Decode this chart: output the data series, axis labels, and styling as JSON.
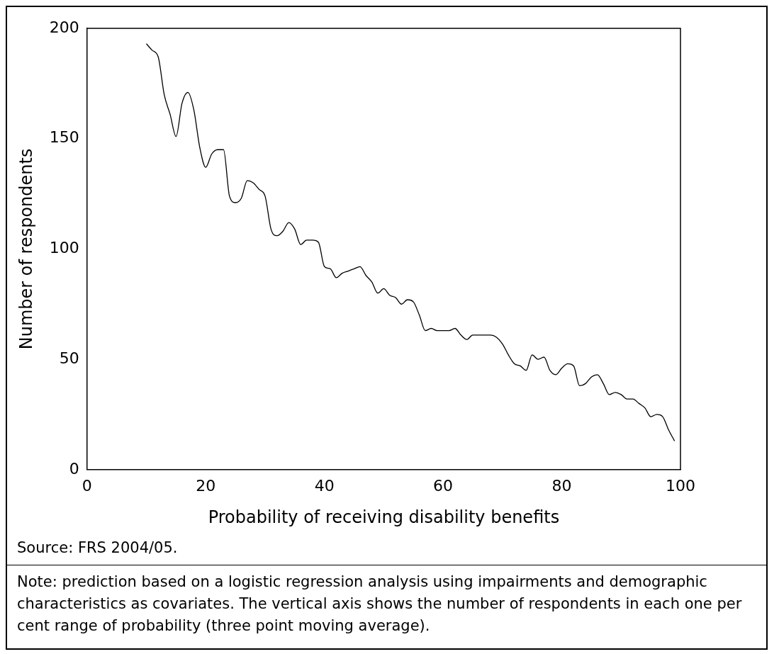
{
  "chart_data": {
    "type": "line",
    "xlabel": "Probability of receiving disability benefits",
    "ylabel": "Number of respondents",
    "x": [
      10,
      11,
      12,
      13,
      14,
      15,
      16,
      17,
      18,
      19,
      20,
      21,
      22,
      23,
      24,
      25,
      26,
      27,
      28,
      29,
      30,
      31,
      32,
      33,
      34,
      35,
      36,
      37,
      38,
      39,
      40,
      41,
      42,
      43,
      44,
      45,
      46,
      47,
      48,
      49,
      50,
      51,
      52,
      53,
      54,
      55,
      56,
      57,
      58,
      59,
      60,
      61,
      62,
      63,
      64,
      65,
      66,
      67,
      68,
      69,
      70,
      71,
      72,
      73,
      74,
      75,
      76,
      77,
      78,
      79,
      80,
      81,
      82,
      83,
      84,
      85,
      86,
      87,
      88,
      89,
      90,
      91,
      92,
      93,
      94,
      95,
      96,
      97,
      98,
      99
    ],
    "series": [
      {
        "color": "#000000",
        "values": [
          193,
          190,
          187,
          170,
          161,
          151,
          166,
          171,
          163,
          146,
          137,
          143,
          145,
          145,
          124,
          121,
          123,
          131,
          130,
          127,
          124,
          109,
          106,
          108,
          112,
          109,
          102,
          104,
          104,
          103,
          92,
          91,
          87,
          89,
          90,
          91,
          92,
          88,
          85,
          80,
          82,
          79,
          78,
          75,
          77,
          76,
          70,
          63,
          64,
          63,
          63,
          63,
          64,
          61,
          59,
          61,
          61,
          61,
          61,
          60,
          57,
          52,
          48,
          47,
          45,
          52,
          50,
          51,
          45,
          43,
          46,
          48,
          47,
          38,
          39,
          42,
          43,
          39,
          34,
          35,
          34,
          32,
          32,
          30,
          28,
          24,
          25,
          24,
          18,
          13
        ]
      }
    ],
    "xlim": [
      0,
      100
    ],
    "xticks": [
      0,
      20,
      40,
      60,
      80,
      100
    ],
    "ylim": [
      0,
      200
    ],
    "yticks": [
      0,
      50,
      100,
      150,
      200
    ],
    "grid": false,
    "legend": false,
    "marker": "none",
    "line_style": "solid",
    "annotations": [
      "Source: FRS 2004/05.",
      "Note: prediction based on a logistic regression analysis using impairments and demographic characteristics as covariates. The vertical axis shows the number of respondents in each one per cent range of probability (three point moving average)."
    ]
  }
}
